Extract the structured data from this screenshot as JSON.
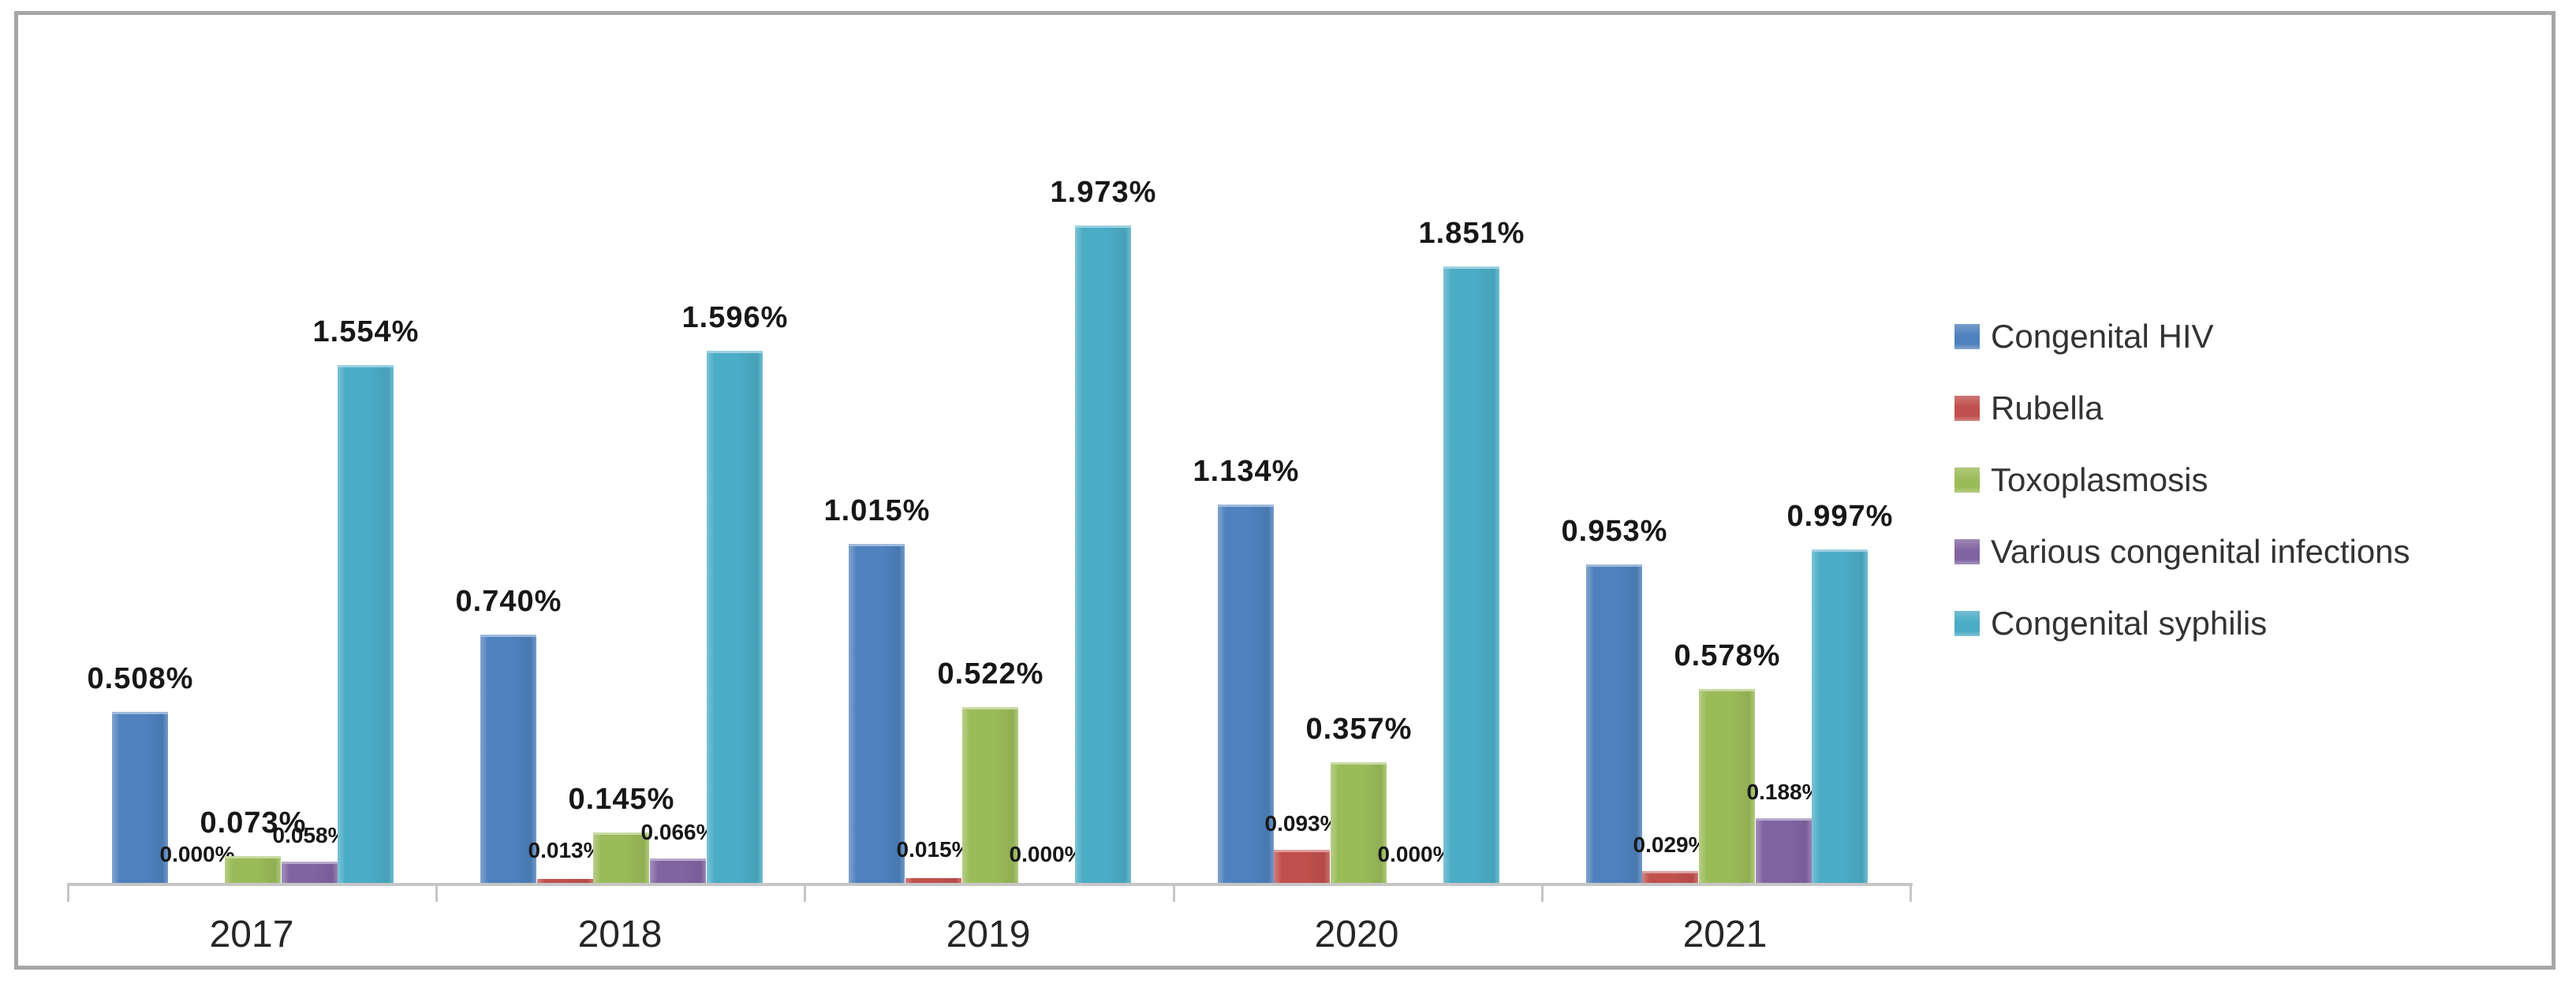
{
  "chart_data": {
    "type": "bar",
    "title": "",
    "xlabel": "",
    "ylabel": "",
    "ylim": [
      0,
      2.0
    ],
    "grid": false,
    "legend_position": "right",
    "categories": [
      "2017",
      "2018",
      "2019",
      "2020",
      "2021"
    ],
    "series": [
      {
        "name": "Congenital HIV",
        "color": "#4F81BD",
        "label_size": "large",
        "values": [
          0.508,
          0.74,
          1.015,
          1.134,
          0.953
        ],
        "labels": [
          "0.508%",
          "0.740%",
          "1.015%",
          "1.134%",
          "0.953%"
        ]
      },
      {
        "name": "Rubella",
        "color": "#C0504D",
        "label_size": "small",
        "values": [
          0.0,
          0.013,
          0.015,
          0.093,
          0.029
        ],
        "labels": [
          "0.000%",
          "0.013%",
          "0.015%",
          "0.093%",
          "0.029%"
        ]
      },
      {
        "name": "Toxoplasmosis",
        "color": "#9BBB59",
        "label_size": "large",
        "values": [
          0.073,
          0.145,
          0.522,
          0.357,
          0.578
        ],
        "labels": [
          "0.073%",
          "0.145%",
          "0.522%",
          "0.357%",
          "0.578%"
        ]
      },
      {
        "name": "Various congenital infections",
        "color": "#8064A2",
        "label_size": "small",
        "values": [
          0.058,
          0.066,
          0.0,
          0.0,
          0.188
        ],
        "labels": [
          "0.058%",
          "0.066%",
          "0.000%",
          "0.000%",
          "0.188%"
        ]
      },
      {
        "name": "Congenital syphilis",
        "color": "#4BACC6",
        "label_size": "large",
        "values": [
          1.554,
          1.596,
          1.973,
          1.851,
          0.997
        ],
        "labels": [
          "1.554%",
          "1.596%",
          "1.973%",
          "1.851%",
          "0.997%"
        ]
      }
    ],
    "colors": {
      "axis": "#c6c6c6",
      "frame_border": "#a6a6a6",
      "label_text": "#171717",
      "year_text": "#262626",
      "legend_text": "#333333"
    }
  }
}
